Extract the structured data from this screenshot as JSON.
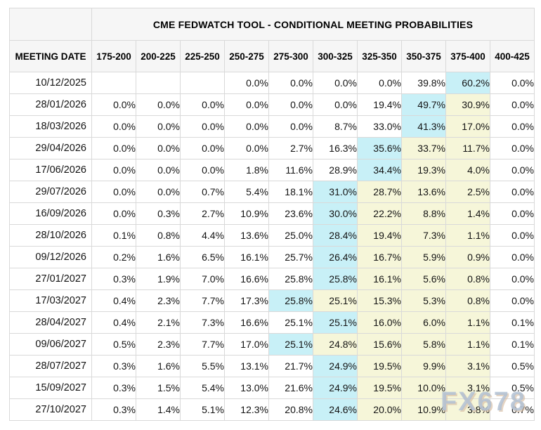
{
  "title": "CME FEDWATCH TOOL - CONDITIONAL MEETING PROBABILITIES",
  "columns": [
    "MEETING DATE",
    "175-200",
    "200-225",
    "225-250",
    "250-275",
    "275-300",
    "300-325",
    "325-350",
    "350-375",
    "375-400",
    "400-425"
  ],
  "rows": [
    {
      "date": "10/12/2025",
      "values": [
        "",
        "",
        "",
        "0.0%",
        "0.0%",
        "0.0%",
        "0.0%",
        "39.8%",
        "60.2%",
        "0.0%"
      ],
      "highlights": [
        "",
        "",
        "",
        "",
        "",
        "",
        "",
        "",
        "max",
        ""
      ]
    },
    {
      "date": "28/01/2026",
      "values": [
        "0.0%",
        "0.0%",
        "0.0%",
        "0.0%",
        "0.0%",
        "0.0%",
        "19.4%",
        "49.7%",
        "30.9%",
        "0.0%"
      ],
      "highlights": [
        "",
        "",
        "",
        "",
        "",
        "",
        "",
        "max",
        "range",
        ""
      ]
    },
    {
      "date": "18/03/2026",
      "values": [
        "0.0%",
        "0.0%",
        "0.0%",
        "0.0%",
        "0.0%",
        "8.7%",
        "33.0%",
        "41.3%",
        "17.0%",
        "0.0%"
      ],
      "highlights": [
        "",
        "",
        "",
        "",
        "",
        "",
        "",
        "max",
        "range",
        ""
      ]
    },
    {
      "date": "29/04/2026",
      "values": [
        "0.0%",
        "0.0%",
        "0.0%",
        "0.0%",
        "2.7%",
        "16.3%",
        "35.6%",
        "33.7%",
        "11.7%",
        "0.0%"
      ],
      "highlights": [
        "",
        "",
        "",
        "",
        "",
        "",
        "max",
        "range",
        "range",
        ""
      ]
    },
    {
      "date": "17/06/2026",
      "values": [
        "0.0%",
        "0.0%",
        "0.0%",
        "1.8%",
        "11.6%",
        "28.9%",
        "34.4%",
        "19.3%",
        "4.0%",
        "0.0%"
      ],
      "highlights": [
        "",
        "",
        "",
        "",
        "",
        "",
        "max",
        "range",
        "range",
        ""
      ]
    },
    {
      "date": "29/07/2026",
      "values": [
        "0.0%",
        "0.0%",
        "0.7%",
        "5.4%",
        "18.1%",
        "31.0%",
        "28.7%",
        "13.6%",
        "2.5%",
        "0.0%"
      ],
      "highlights": [
        "",
        "",
        "",
        "",
        "",
        "max",
        "range",
        "range",
        "range",
        ""
      ]
    },
    {
      "date": "16/09/2026",
      "values": [
        "0.0%",
        "0.3%",
        "2.7%",
        "10.9%",
        "23.6%",
        "30.0%",
        "22.2%",
        "8.8%",
        "1.4%",
        "0.0%"
      ],
      "highlights": [
        "",
        "",
        "",
        "",
        "",
        "max",
        "range",
        "range",
        "range",
        ""
      ]
    },
    {
      "date": "28/10/2026",
      "values": [
        "0.1%",
        "0.8%",
        "4.4%",
        "13.6%",
        "25.0%",
        "28.4%",
        "19.4%",
        "7.3%",
        "1.1%",
        "0.0%"
      ],
      "highlights": [
        "",
        "",
        "",
        "",
        "",
        "max",
        "range",
        "range",
        "range",
        ""
      ]
    },
    {
      "date": "09/12/2026",
      "values": [
        "0.2%",
        "1.6%",
        "6.5%",
        "16.1%",
        "25.7%",
        "26.4%",
        "16.7%",
        "5.9%",
        "0.9%",
        "0.0%"
      ],
      "highlights": [
        "",
        "",
        "",
        "",
        "",
        "max",
        "range",
        "range",
        "range",
        ""
      ]
    },
    {
      "date": "27/01/2027",
      "values": [
        "0.3%",
        "1.9%",
        "7.0%",
        "16.6%",
        "25.8%",
        "25.8%",
        "16.1%",
        "5.6%",
        "0.8%",
        "0.0%"
      ],
      "highlights": [
        "",
        "",
        "",
        "",
        "",
        "max",
        "range",
        "range",
        "range",
        ""
      ]
    },
    {
      "date": "17/03/2027",
      "values": [
        "0.4%",
        "2.3%",
        "7.7%",
        "17.3%",
        "25.8%",
        "25.1%",
        "15.3%",
        "5.3%",
        "0.8%",
        "0.0%"
      ],
      "highlights": [
        "",
        "",
        "",
        "",
        "max",
        "range",
        "range",
        "range",
        "range",
        ""
      ]
    },
    {
      "date": "28/04/2027",
      "values": [
        "0.4%",
        "2.1%",
        "7.3%",
        "16.6%",
        "25.1%",
        "25.1%",
        "16.0%",
        "6.0%",
        "1.1%",
        "0.1%"
      ],
      "highlights": [
        "",
        "",
        "",
        "",
        "",
        "max",
        "range",
        "range",
        "range",
        ""
      ]
    },
    {
      "date": "09/06/2027",
      "values": [
        "0.5%",
        "2.3%",
        "7.7%",
        "17.0%",
        "25.1%",
        "24.8%",
        "15.6%",
        "5.8%",
        "1.1%",
        "0.1%"
      ],
      "highlights": [
        "",
        "",
        "",
        "",
        "max",
        "range",
        "range",
        "range",
        "range",
        ""
      ]
    },
    {
      "date": "28/07/2027",
      "values": [
        "0.3%",
        "1.6%",
        "5.5%",
        "13.1%",
        "21.7%",
        "24.9%",
        "19.5%",
        "9.9%",
        "3.1%",
        "0.5%"
      ],
      "highlights": [
        "",
        "",
        "",
        "",
        "",
        "max",
        "range",
        "range",
        "range",
        ""
      ]
    },
    {
      "date": "15/09/2027",
      "values": [
        "0.3%",
        "1.5%",
        "5.4%",
        "13.0%",
        "21.6%",
        "24.9%",
        "19.5%",
        "10.0%",
        "3.1%",
        "0.5%"
      ],
      "highlights": [
        "",
        "",
        "",
        "",
        "",
        "max",
        "range",
        "range",
        "range",
        ""
      ]
    },
    {
      "date": "27/10/2027",
      "values": [
        "0.3%",
        "1.4%",
        "5.1%",
        "12.3%",
        "20.8%",
        "24.6%",
        "20.0%",
        "10.9%",
        "3.8%",
        "0.7%"
      ],
      "highlights": [
        "",
        "",
        "",
        "",
        "",
        "max",
        "range",
        "range",
        "range",
        ""
      ]
    }
  ],
  "watermark": "FX678",
  "colors": {
    "highlight_max": "#c8f0f7",
    "highlight_range": "#f6f6d9",
    "header_bg": "#f6f6f6",
    "border": "#d9d9d9"
  }
}
